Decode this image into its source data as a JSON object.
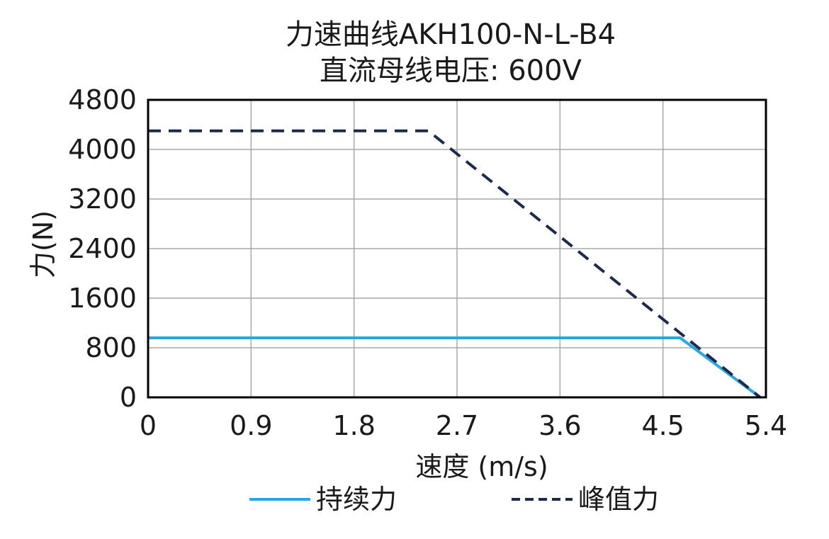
{
  "chart_data": {
    "type": "line",
    "title": "力速曲线AKH100-N-L-B4",
    "subtitle": "直流母线电压: 600V",
    "xlabel": "速度 (m/s)",
    "ylabel": "力(N)",
    "xlim": [
      0,
      5.4
    ],
    "ylim": [
      0,
      4800
    ],
    "xticks": [
      0,
      0.9,
      1.8,
      2.7,
      3.6,
      4.5,
      5.4
    ],
    "xtick_labels": [
      "0",
      "0.9",
      "1.8",
      "2.7",
      "3.6",
      "4.5",
      "5.4"
    ],
    "yticks": [
      0,
      800,
      1600,
      2400,
      3200,
      4000,
      4800
    ],
    "ytick_labels": [
      "0",
      "800",
      "1600",
      "2400",
      "3200",
      "4000",
      "4800"
    ],
    "grid": true,
    "legend_position": "bottom",
    "series": [
      {
        "name": "持续力",
        "style": "solid",
        "color": "#2aa7dc",
        "points": [
          [
            0,
            960
          ],
          [
            4.65,
            960
          ],
          [
            5.35,
            0
          ]
        ]
      },
      {
        "name": "峰值力",
        "style": "dashed",
        "color": "#1b2a4e",
        "points": [
          [
            0,
            4300
          ],
          [
            2.45,
            4300
          ],
          [
            5.35,
            0
          ]
        ]
      }
    ]
  }
}
